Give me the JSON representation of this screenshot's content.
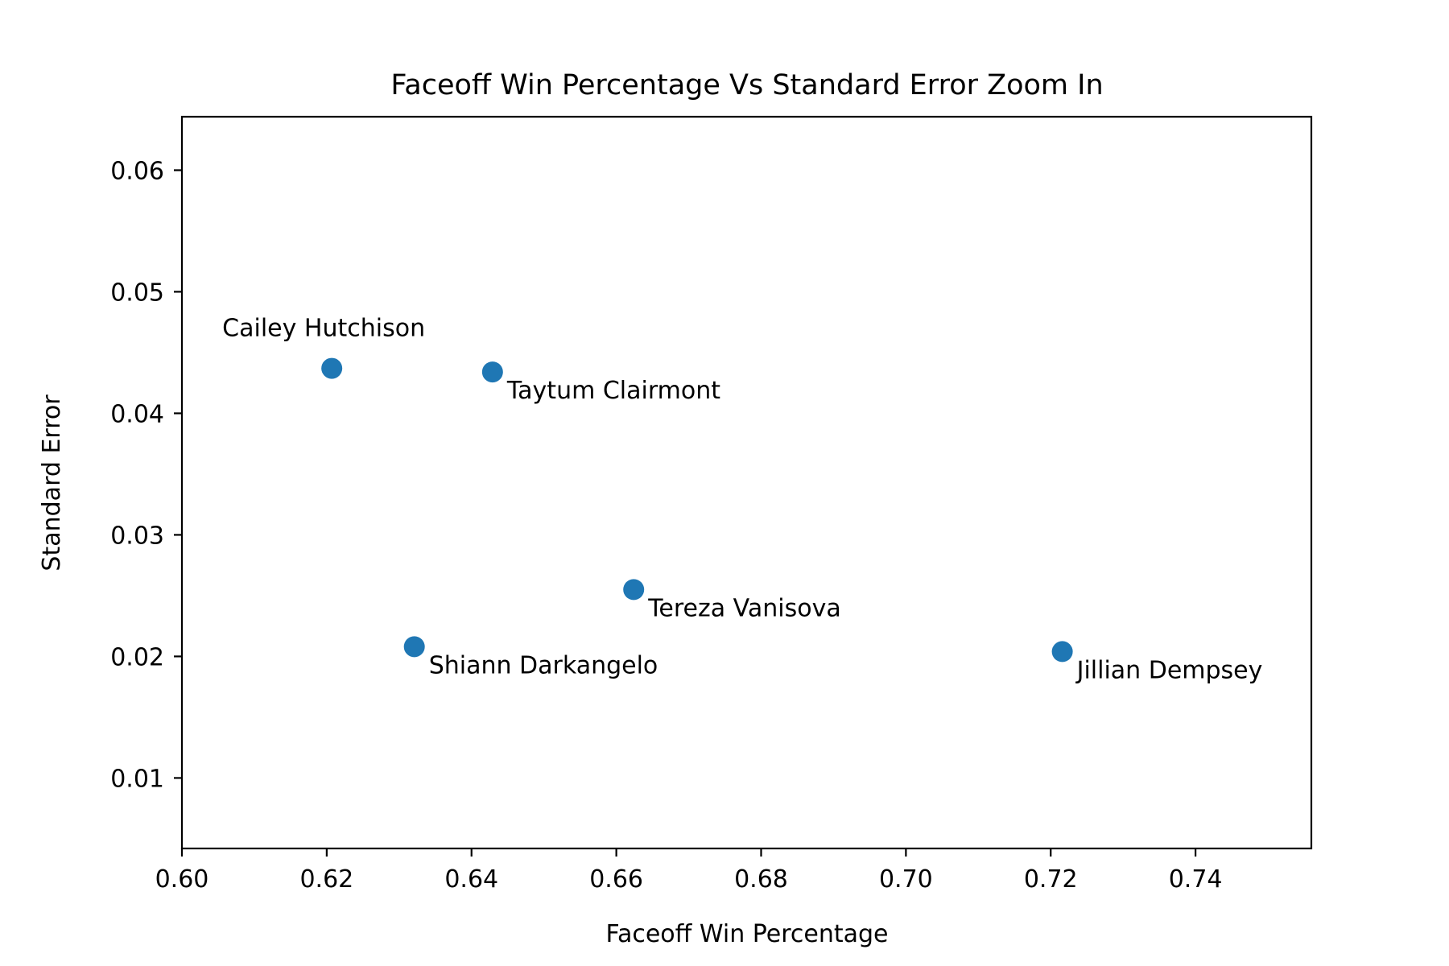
{
  "chart_data": {
    "type": "scatter",
    "title": "Faceoff Win Percentage Vs Standard Error Zoom In",
    "xlabel": "Faceoff Win Percentage",
    "ylabel": "Standard Error",
    "xlim": [
      0.6,
      0.756
    ],
    "ylim": [
      0.0042,
      0.0644
    ],
    "x_ticks": [
      0.6,
      0.62,
      0.64,
      0.66,
      0.68,
      0.7,
      0.72,
      0.74
    ],
    "x_tick_labels": [
      "0.60",
      "0.62",
      "0.64",
      "0.66",
      "0.68",
      "0.70",
      "0.72",
      "0.74"
    ],
    "y_ticks": [
      0.01,
      0.02,
      0.03,
      0.04,
      0.05,
      0.06
    ],
    "y_tick_labels": [
      "0.01",
      "0.02",
      "0.03",
      "0.04",
      "0.05",
      "0.06"
    ],
    "grid": false,
    "marker_color": "#1f77b4",
    "points": [
      {
        "label": "Cailey Hutchison",
        "x": 0.6207,
        "y": 0.0437,
        "label_position": "above-left"
      },
      {
        "label": "Taytum Clairmont",
        "x": 0.6429,
        "y": 0.0434,
        "label_position": "below-right"
      },
      {
        "label": "Tereza Vanisova",
        "x": 0.6624,
        "y": 0.0255,
        "label_position": "below-right"
      },
      {
        "label": "Shiann Darkangelo",
        "x": 0.6321,
        "y": 0.0208,
        "label_position": "below-right"
      },
      {
        "label": "Jillian Dempsey",
        "x": 0.7216,
        "y": 0.0204,
        "label_position": "below-right"
      }
    ]
  }
}
